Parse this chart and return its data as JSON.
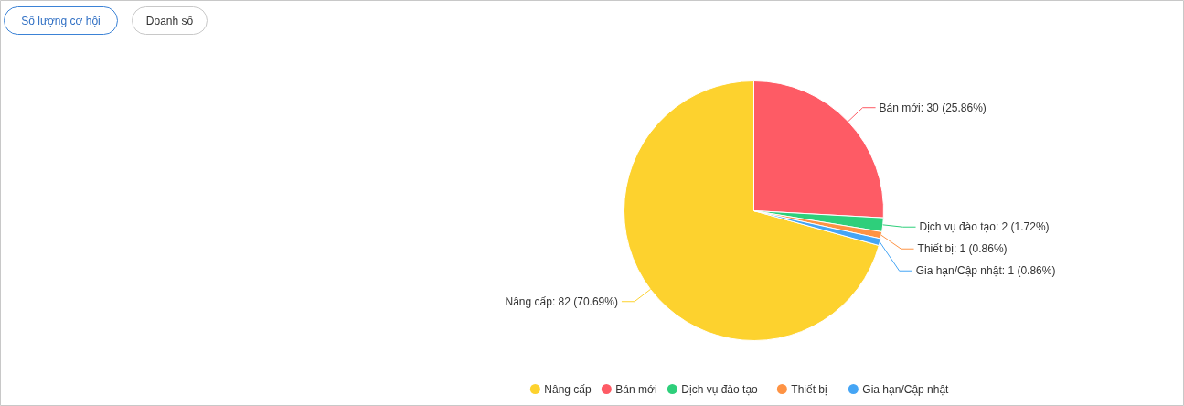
{
  "chart_data": {
    "type": "pie",
    "categories": [
      "Nâng cấp",
      "Bán mới",
      "Dịch vụ đào tạo",
      "Thiết bị",
      "Gia hạn/Cập nhật"
    ],
    "values": [
      82,
      30,
      2,
      1,
      1
    ],
    "value_labels": [
      "Nâng cấp: 82 (70.69%)",
      "Bán mới: 30 (25.86%)",
      "Dịch vụ đào tạo: 2 (1.72%)",
      "Thiết bị: 1 (0.86%)",
      "Gia hạn/Cập nhật: 1 (0.86%)"
    ],
    "colors": [
      "#fdd22e",
      "#fe5b65",
      "#2ecf7b",
      "#fe9344",
      "#45a5f5"
    ],
    "legend": "bottom",
    "annotations": [
      "Số lượng cơ hội",
      "Doanh số"
    ]
  }
}
